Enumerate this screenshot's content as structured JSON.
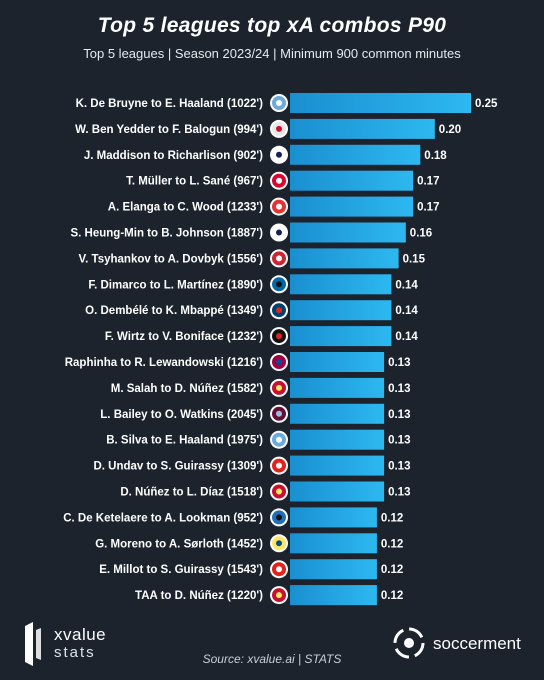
{
  "header": {
    "title": "Top 5 leagues top xA combos P90",
    "subtitle": "Top 5 leagues | Season 2023/24 | Minimum 900 common minutes"
  },
  "chart_data": {
    "type": "bar",
    "orientation": "horizontal",
    "title": "Top 5 leagues top xA combos P90",
    "subtitle": "Top 5 leagues | Season 2023/24 | Minimum 900 common minutes",
    "categories": [
      "K. De Bruyne to E. Haaland (1022')",
      "W. Ben Yedder to F. Balogun (994')",
      "J. Maddison to Richarlison (902')",
      "T. Müller to L. Sané (967')",
      "A. Elanga to C. Wood (1233')",
      "S. Heung-Min to B. Johnson (1887')",
      "V. Tsyhankov to A. Dovbyk (1556')",
      "F. Dimarco to L. Martínez (1890')",
      "O. Dembélé to K. Mbappé (1349')",
      "F. Wirtz to V. Boniface (1232')",
      "Raphinha to R. Lewandowski (1216')",
      "M. Salah to D. Núñez (1582')",
      "L. Bailey to O. Watkins (2045')",
      "B. Silva to E. Haaland (1975')",
      "D. Undav to S. Guirassy (1309')",
      "D. Núñez to L. Díaz (1518')",
      "C. De Ketelaere to A. Lookman (952')",
      "G. Moreno to A. Sørloth (1452')",
      "E. Millot to S. Guirassy (1543')",
      "TAA to D. Núñez (1220')"
    ],
    "values": [
      0.25,
      0.2,
      0.18,
      0.17,
      0.17,
      0.16,
      0.15,
      0.14,
      0.14,
      0.14,
      0.13,
      0.13,
      0.13,
      0.13,
      0.13,
      0.13,
      0.12,
      0.12,
      0.12,
      0.12
    ],
    "value_labels": [
      "0.25",
      "0.20",
      "0.18",
      "0.17",
      "0.17",
      "0.16",
      "0.15",
      "0.14",
      "0.14",
      "0.14",
      "0.13",
      "0.13",
      "0.13",
      "0.13",
      "0.13",
      "0.13",
      "0.12",
      "0.12",
      "0.12",
      "0.12"
    ],
    "club_badges": [
      "man-city",
      "monaco",
      "tottenham",
      "bayern",
      "nottingham-forest",
      "tottenham",
      "girona",
      "inter",
      "psg",
      "leverkusen",
      "barcelona",
      "liverpool",
      "aston-villa",
      "man-city",
      "stuttgart",
      "liverpool",
      "atalanta",
      "villarreal",
      "stuttgart",
      "liverpool"
    ],
    "xlim": [
      0,
      0.25
    ],
    "grid": false,
    "legend": "none",
    "bar_color_start": "#1a8fd0",
    "bar_color_end": "#2db8f0"
  },
  "branding": {
    "left_logo_line1": "xvalue",
    "left_logo_line2": "stats",
    "right_logo": "soccerment",
    "source": "Source: xvalue.ai | STATS"
  },
  "colors": {
    "background": "#1d232d",
    "bar": "#22a6e4",
    "text": "#ffffff"
  }
}
